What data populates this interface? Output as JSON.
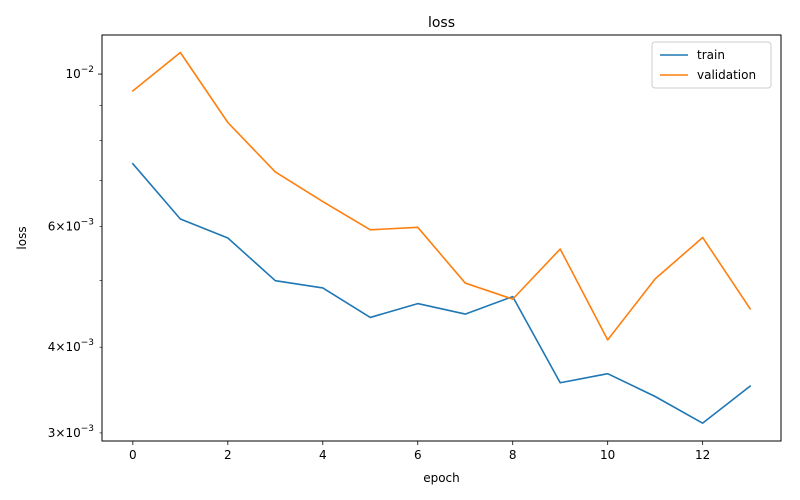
{
  "chart_data": {
    "type": "line",
    "title": "loss",
    "xlabel": "epoch",
    "ylabel": "loss",
    "yscale": "log",
    "xlim": [
      -0.65,
      13.65
    ],
    "ylim": [
      0.00292,
      0.0114
    ],
    "x_ticks": [
      0,
      2,
      4,
      6,
      8,
      10,
      12
    ],
    "x_tick_labels": [
      "0",
      "2",
      "4",
      "6",
      "8",
      "10",
      "12"
    ],
    "y_major_ticks": [
      0.01
    ],
    "y_major_tick_labels": [
      {
        "base": "10",
        "exp": "−2"
      }
    ],
    "y_minor_ticks": [
      0.003,
      0.004,
      0.006
    ],
    "y_minor_tick_labels": [
      {
        "mant": "3",
        "exp": "−3"
      },
      {
        "mant": "4",
        "exp": "−3"
      },
      {
        "mant": "6",
        "exp": "−3"
      }
    ],
    "y_unlabeled_minor_ticks": [
      0.005,
      0.007,
      0.008,
      0.009
    ],
    "grid": false,
    "legend_position": "top-right",
    "x": [
      0,
      1,
      2,
      3,
      4,
      5,
      6,
      7,
      8,
      9,
      10,
      11,
      12,
      13
    ],
    "series": [
      {
        "name": "train",
        "color": "#1f77b4",
        "values": [
          0.0074,
          0.00615,
          0.00577,
          0.005,
          0.00488,
          0.00442,
          0.00463,
          0.00447,
          0.00474,
          0.00355,
          0.00366,
          0.00339,
          0.0031,
          0.00351
        ]
      },
      {
        "name": "validation",
        "color": "#ff7f0e",
        "values": [
          0.00945,
          0.01075,
          0.0085,
          0.0072,
          0.00652,
          0.00593,
          0.00598,
          0.00496,
          0.0047,
          0.00556,
          0.0041,
          0.00503,
          0.00578,
          0.00455
        ]
      }
    ]
  }
}
